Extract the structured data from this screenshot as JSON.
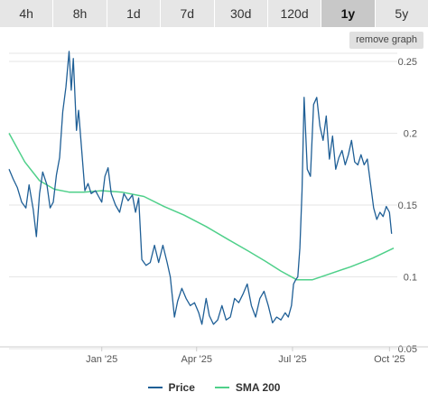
{
  "tabs": [
    {
      "label": "4h"
    },
    {
      "label": "8h"
    },
    {
      "label": "1d"
    },
    {
      "label": "7d"
    },
    {
      "label": "30d"
    },
    {
      "label": "120d"
    },
    {
      "label": "1y"
    },
    {
      "label": "5y"
    }
  ],
  "active_tab": "1y",
  "remove_graph_label": "remove graph",
  "colors": {
    "price": "#1f5f96",
    "sma": "#4fd08a",
    "grid": "#e6e6e6",
    "axis_text": "#555555"
  },
  "chart_data": {
    "type": "line",
    "xlabel": "",
    "ylabel": "",
    "y_axis_position": "right",
    "ylim": [
      0.05,
      0.25
    ],
    "yticks": [
      "0.05",
      "0.1",
      "0.15",
      "0.2",
      "0.25"
    ],
    "xlim": [
      "2024-10-05",
      "2025-10-05"
    ],
    "xticks": [
      {
        "date": "2025-01-01",
        "label": "Jan '25"
      },
      {
        "date": "2025-04-01",
        "label": "Apr '25"
      },
      {
        "date": "2025-07-01",
        "label": "Jul '25"
      },
      {
        "date": "2025-10-01",
        "label": "Oct '25"
      }
    ],
    "grid": true,
    "legend": "bottom-center",
    "series": [
      {
        "name": "Price",
        "color": "#1f5f96",
        "points": [
          [
            "2024-10-05",
            0.175
          ],
          [
            "2024-10-09",
            0.168
          ],
          [
            "2024-10-13",
            0.162
          ],
          [
            "2024-10-17",
            0.152
          ],
          [
            "2024-10-21",
            0.148
          ],
          [
            "2024-10-24",
            0.164
          ],
          [
            "2024-10-28",
            0.147
          ],
          [
            "2024-10-31",
            0.128
          ],
          [
            "2024-11-03",
            0.158
          ],
          [
            "2024-11-06",
            0.173
          ],
          [
            "2024-11-10",
            0.164
          ],
          [
            "2024-11-13",
            0.148
          ],
          [
            "2024-11-16",
            0.152
          ],
          [
            "2024-11-19",
            0.171
          ],
          [
            "2024-11-22",
            0.183
          ],
          [
            "2024-11-25",
            0.215
          ],
          [
            "2024-11-28",
            0.232
          ],
          [
            "2024-12-01",
            0.257
          ],
          [
            "2024-12-03",
            0.23
          ],
          [
            "2024-12-05",
            0.252
          ],
          [
            "2024-12-08",
            0.202
          ],
          [
            "2024-12-10",
            0.216
          ],
          [
            "2024-12-13",
            0.188
          ],
          [
            "2024-12-16",
            0.16
          ],
          [
            "2024-12-19",
            0.165
          ],
          [
            "2024-12-22",
            0.158
          ],
          [
            "2024-12-26",
            0.16
          ],
          [
            "2024-12-29",
            0.156
          ],
          [
            "2025-01-01",
            0.152
          ],
          [
            "2025-01-04",
            0.17
          ],
          [
            "2025-01-07",
            0.176
          ],
          [
            "2025-01-10",
            0.158
          ],
          [
            "2025-01-14",
            0.15
          ],
          [
            "2025-01-18",
            0.145
          ],
          [
            "2025-01-22",
            0.158
          ],
          [
            "2025-01-26",
            0.153
          ],
          [
            "2025-01-30",
            0.157
          ],
          [
            "2025-02-02",
            0.145
          ],
          [
            "2025-02-05",
            0.155
          ],
          [
            "2025-02-08",
            0.112
          ],
          [
            "2025-02-12",
            0.108
          ],
          [
            "2025-02-16",
            0.11
          ],
          [
            "2025-02-20",
            0.122
          ],
          [
            "2025-02-24",
            0.11
          ],
          [
            "2025-02-28",
            0.122
          ],
          [
            "2025-03-04",
            0.11
          ],
          [
            "2025-03-07",
            0.1
          ],
          [
            "2025-03-11",
            0.072
          ],
          [
            "2025-03-14",
            0.083
          ],
          [
            "2025-03-18",
            0.092
          ],
          [
            "2025-03-22",
            0.085
          ],
          [
            "2025-03-26",
            0.08
          ],
          [
            "2025-03-30",
            0.082
          ],
          [
            "2025-04-03",
            0.075
          ],
          [
            "2025-04-06",
            0.067
          ],
          [
            "2025-04-10",
            0.085
          ],
          [
            "2025-04-13",
            0.073
          ],
          [
            "2025-04-17",
            0.067
          ],
          [
            "2025-04-21",
            0.07
          ],
          [
            "2025-04-25",
            0.08
          ],
          [
            "2025-04-29",
            0.07
          ],
          [
            "2025-05-03",
            0.072
          ],
          [
            "2025-05-07",
            0.085
          ],
          [
            "2025-05-11",
            0.082
          ],
          [
            "2025-05-15",
            0.088
          ],
          [
            "2025-05-19",
            0.095
          ],
          [
            "2025-05-23",
            0.08
          ],
          [
            "2025-05-27",
            0.072
          ],
          [
            "2025-05-31",
            0.085
          ],
          [
            "2025-06-04",
            0.09
          ],
          [
            "2025-06-08",
            0.08
          ],
          [
            "2025-06-12",
            0.068
          ],
          [
            "2025-06-16",
            0.072
          ],
          [
            "2025-06-20",
            0.07
          ],
          [
            "2025-06-24",
            0.075
          ],
          [
            "2025-06-27",
            0.072
          ],
          [
            "2025-06-30",
            0.08
          ],
          [
            "2025-07-02",
            0.095
          ],
          [
            "2025-07-04",
            0.098
          ],
          [
            "2025-07-06",
            0.1
          ],
          [
            "2025-07-08",
            0.12
          ],
          [
            "2025-07-10",
            0.16
          ],
          [
            "2025-07-12",
            0.225
          ],
          [
            "2025-07-15",
            0.175
          ],
          [
            "2025-07-18",
            0.17
          ],
          [
            "2025-07-21",
            0.22
          ],
          [
            "2025-07-24",
            0.225
          ],
          [
            "2025-07-27",
            0.205
          ],
          [
            "2025-07-30",
            0.195
          ],
          [
            "2025-08-02",
            0.212
          ],
          [
            "2025-08-05",
            0.182
          ],
          [
            "2025-08-08",
            0.198
          ],
          [
            "2025-08-11",
            0.175
          ],
          [
            "2025-08-14",
            0.183
          ],
          [
            "2025-08-17",
            0.188
          ],
          [
            "2025-08-20",
            0.178
          ],
          [
            "2025-08-23",
            0.185
          ],
          [
            "2025-08-26",
            0.195
          ],
          [
            "2025-08-29",
            0.18
          ],
          [
            "2025-09-01",
            0.178
          ],
          [
            "2025-09-04",
            0.185
          ],
          [
            "2025-09-07",
            0.178
          ],
          [
            "2025-09-10",
            0.182
          ],
          [
            "2025-09-13",
            0.165
          ],
          [
            "2025-09-16",
            0.148
          ],
          [
            "2025-09-19",
            0.14
          ],
          [
            "2025-09-22",
            0.145
          ],
          [
            "2025-09-25",
            0.142
          ],
          [
            "2025-09-28",
            0.149
          ],
          [
            "2025-10-01",
            0.145
          ],
          [
            "2025-10-03",
            0.13
          ]
        ]
      },
      {
        "name": "SMA 200",
        "color": "#4fd08a",
        "points": [
          [
            "2024-10-05",
            0.2
          ],
          [
            "2024-10-20",
            0.18
          ],
          [
            "2024-11-03",
            0.167
          ],
          [
            "2024-11-17",
            0.161
          ],
          [
            "2024-12-01",
            0.159
          ],
          [
            "2024-12-15",
            0.159
          ],
          [
            "2025-01-01",
            0.16
          ],
          [
            "2025-01-20",
            0.159
          ],
          [
            "2025-02-10",
            0.156
          ],
          [
            "2025-03-01",
            0.149
          ],
          [
            "2025-03-20",
            0.143
          ],
          [
            "2025-04-10",
            0.135
          ],
          [
            "2025-05-01",
            0.126
          ],
          [
            "2025-05-20",
            0.118
          ],
          [
            "2025-06-05",
            0.111
          ],
          [
            "2025-06-20",
            0.104
          ],
          [
            "2025-07-05",
            0.098
          ],
          [
            "2025-07-20",
            0.098
          ],
          [
            "2025-08-05",
            0.102
          ],
          [
            "2025-08-25",
            0.107
          ],
          [
            "2025-09-15",
            0.113
          ],
          [
            "2025-10-05",
            0.12
          ]
        ]
      }
    ]
  }
}
